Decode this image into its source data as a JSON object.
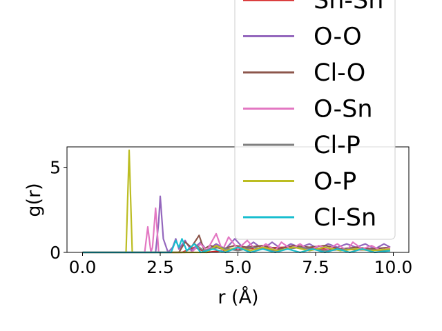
{
  "chart_data": {
    "type": "line",
    "xlabel": "r (Å)",
    "ylabel": "g(r)",
    "xlim": [
      -0.5,
      10.5
    ],
    "ylim": [
      0,
      6.2
    ],
    "x_ticks": [
      "0.0",
      "2.5",
      "5.0",
      "7.5",
      "10.0"
    ],
    "y_ticks": [
      "0",
      "5"
    ],
    "grid": false,
    "legend_placement": "upper-right (overflowing above axes)",
    "series": [
      {
        "name": "Sn-Sn",
        "color": "#d62728",
        "points": [
          [
            0,
            0
          ],
          [
            3.2,
            0
          ],
          [
            3.6,
            0.3
          ],
          [
            4.0,
            0
          ],
          [
            5.0,
            0.2
          ],
          [
            6.5,
            0.3
          ],
          [
            8.0,
            0.2
          ],
          [
            9.9,
            0.1
          ]
        ]
      },
      {
        "name": "O-O",
        "color": "#9467bd",
        "points": [
          [
            0,
            0
          ],
          [
            2.35,
            0
          ],
          [
            2.45,
            1.8
          ],
          [
            2.5,
            3.3
          ],
          [
            2.6,
            0.8
          ],
          [
            2.75,
            0
          ],
          [
            2.9,
            0.3
          ],
          [
            3.0,
            0.8
          ],
          [
            3.1,
            0.2
          ],
          [
            3.3,
            0.7
          ],
          [
            3.5,
            0.1
          ],
          [
            3.8,
            0.6
          ],
          [
            4.0,
            0.1
          ],
          [
            4.3,
            0.5
          ],
          [
            4.6,
            0.2
          ],
          [
            4.9,
            0.8
          ],
          [
            5.2,
            0.2
          ],
          [
            5.5,
            0.6
          ],
          [
            5.8,
            0.2
          ],
          [
            6.1,
            0.6
          ],
          [
            6.4,
            0.2
          ],
          [
            6.7,
            0.5
          ],
          [
            7.0,
            0.3
          ],
          [
            7.3,
            0.5
          ],
          [
            7.6,
            0.2
          ],
          [
            7.9,
            0.5
          ],
          [
            8.2,
            0.3
          ],
          [
            8.5,
            0.5
          ],
          [
            8.8,
            0.3
          ],
          [
            9.1,
            0.5
          ],
          [
            9.4,
            0.2
          ],
          [
            9.7,
            0.5
          ],
          [
            9.9,
            0.3
          ]
        ]
      },
      {
        "name": "Cl-O",
        "color": "#8c564b",
        "points": [
          [
            0,
            0
          ],
          [
            3.1,
            0
          ],
          [
            3.3,
            0.6
          ],
          [
            3.5,
            0.3
          ],
          [
            3.75,
            1.0
          ],
          [
            3.9,
            0.2
          ],
          [
            4.1,
            0.4
          ],
          [
            4.5,
            0.2
          ],
          [
            4.9,
            0.4
          ],
          [
            5.3,
            0.3
          ],
          [
            5.8,
            0.4
          ],
          [
            6.3,
            0.2
          ],
          [
            6.8,
            0.4
          ],
          [
            7.3,
            0.3
          ],
          [
            7.8,
            0.4
          ],
          [
            8.3,
            0.2
          ],
          [
            8.8,
            0.3
          ],
          [
            9.3,
            0.2
          ],
          [
            9.9,
            0.3
          ]
        ]
      },
      {
        "name": "O-Sn",
        "color": "#e377c2",
        "points": [
          [
            0,
            0
          ],
          [
            2.0,
            0
          ],
          [
            2.1,
            1.5
          ],
          [
            2.2,
            0
          ],
          [
            2.25,
            0.3
          ],
          [
            2.35,
            2.6
          ],
          [
            2.45,
            0
          ],
          [
            3.5,
            0
          ],
          [
            3.8,
            0.5
          ],
          [
            4.0,
            0.1
          ],
          [
            4.3,
            1.1
          ],
          [
            4.5,
            0.1
          ],
          [
            4.7,
            0.9
          ],
          [
            5.0,
            0.2
          ],
          [
            5.3,
            0.7
          ],
          [
            5.6,
            0.1
          ],
          [
            5.9,
            0.5
          ],
          [
            6.2,
            0.1
          ],
          [
            6.4,
            0.6
          ],
          [
            6.7,
            0.2
          ],
          [
            7.0,
            0.5
          ],
          [
            7.3,
            0.1
          ],
          [
            7.6,
            0.4
          ],
          [
            7.9,
            0.2
          ],
          [
            8.2,
            0.5
          ],
          [
            8.5,
            0.1
          ],
          [
            8.7,
            0.6
          ],
          [
            9.0,
            0.2
          ],
          [
            9.3,
            0.4
          ],
          [
            9.6,
            0.1
          ],
          [
            9.9,
            0.3
          ]
        ]
      },
      {
        "name": "Cl-P",
        "color": "#7f7f7f",
        "points": [
          [
            0,
            0
          ],
          [
            3.3,
            0
          ],
          [
            3.6,
            0.5
          ],
          [
            3.9,
            0.1
          ],
          [
            4.4,
            0.3
          ],
          [
            5.0,
            0.1
          ],
          [
            5.5,
            0.3
          ],
          [
            6.2,
            0.1
          ],
          [
            7.0,
            0.3
          ],
          [
            7.8,
            0.1
          ],
          [
            8.6,
            0.2
          ],
          [
            9.9,
            0.1
          ]
        ]
      },
      {
        "name": "O-P",
        "color": "#bcbd22",
        "points": [
          [
            0,
            0
          ],
          [
            1.4,
            0
          ],
          [
            1.5,
            6.0
          ],
          [
            1.6,
            0
          ],
          [
            4.0,
            0
          ],
          [
            4.3,
            0.4
          ],
          [
            4.6,
            0.1
          ],
          [
            5.0,
            0.3
          ],
          [
            5.4,
            0.1
          ],
          [
            5.8,
            0.3
          ],
          [
            6.3,
            0.1
          ],
          [
            6.8,
            0.3
          ],
          [
            7.3,
            0.1
          ],
          [
            7.8,
            0.3
          ],
          [
            8.3,
            0.1
          ],
          [
            8.8,
            0.2
          ],
          [
            9.3,
            0.1
          ],
          [
            9.9,
            0.2
          ]
        ]
      },
      {
        "name": "Cl-Sn",
        "color": "#17becf",
        "points": [
          [
            0,
            0
          ],
          [
            2.85,
            0
          ],
          [
            3.0,
            0.7
          ],
          [
            3.1,
            0.3
          ],
          [
            3.2,
            0.8
          ],
          [
            3.35,
            0.1
          ],
          [
            3.6,
            0.5
          ],
          [
            3.8,
            0
          ],
          [
            4.2,
            0.2
          ],
          [
            4.6,
            0
          ],
          [
            5.0,
            0.3
          ],
          [
            5.4,
            0
          ],
          [
            5.8,
            0.2
          ],
          [
            6.2,
            0
          ],
          [
            6.6,
            0.2
          ],
          [
            7.0,
            0
          ],
          [
            7.4,
            0.2
          ],
          [
            7.8,
            0
          ],
          [
            8.2,
            0.2
          ],
          [
            8.6,
            0
          ],
          [
            9.0,
            0.2
          ],
          [
            9.4,
            0
          ],
          [
            9.9,
            0.1
          ]
        ]
      }
    ]
  }
}
